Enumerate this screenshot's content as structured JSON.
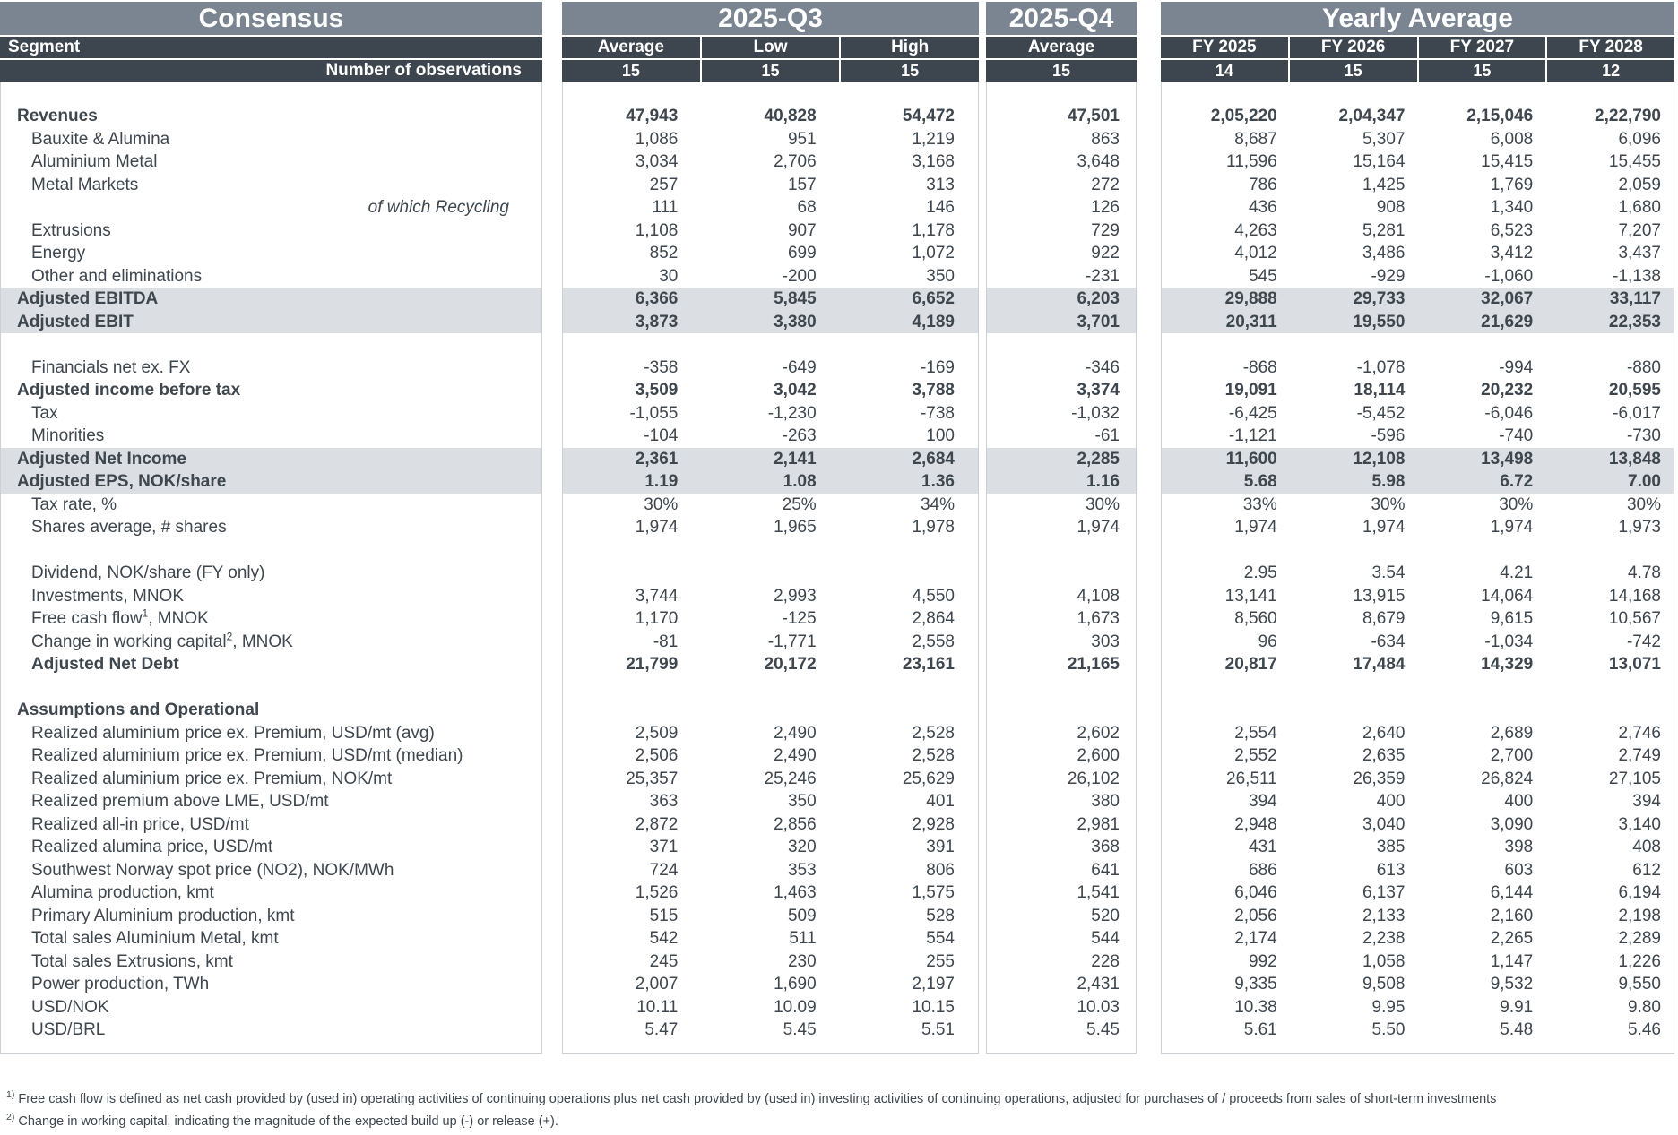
{
  "consensus": {
    "title": "Consensus",
    "segment_label": "Segment",
    "observations_label": "Number of observations"
  },
  "groups": {
    "q3": {
      "title": "2025-Q3",
      "columns": [
        "Average",
        "Low",
        "High"
      ],
      "observations": [
        "15",
        "15",
        "15"
      ]
    },
    "q4": {
      "title": "2025-Q4",
      "columns": [
        "Average"
      ],
      "observations": [
        "15"
      ]
    },
    "yearly": {
      "title": "Yearly Average",
      "columns": [
        "FY 2025",
        "FY 2026",
        "FY 2027",
        "FY 2028"
      ],
      "observations": [
        "14",
        "15",
        "15",
        "12"
      ]
    }
  },
  "colors": {
    "title_bar": "#7a8591",
    "header_bar": "#3d464e",
    "highlight_row": "#dbdee2",
    "body_text": "#3e464e"
  },
  "rows": [
    {
      "label": "Revenues",
      "style": "top b",
      "values": [
        "47,943",
        "40,828",
        "54,472",
        "47,501",
        "2,05,220",
        "2,04,347",
        "2,15,046",
        "2,22,790"
      ]
    },
    {
      "label": "Bauxite & Alumina",
      "values": [
        "1,086",
        "951",
        "1,219",
        "863",
        "8,687",
        "5,307",
        "6,008",
        "6,096"
      ]
    },
    {
      "label": "Aluminium Metal",
      "values": [
        "3,034",
        "2,706",
        "3,168",
        "3,648",
        "11,596",
        "15,164",
        "15,415",
        "15,455"
      ]
    },
    {
      "label": "Metal Markets",
      "values": [
        "257",
        "157",
        "313",
        "272",
        "786",
        "1,425",
        "1,769",
        "2,059"
      ]
    },
    {
      "label": "of which Recycling",
      "style": "ir",
      "values": [
        "111",
        "68",
        "146",
        "126",
        "436",
        "908",
        "1,340",
        "1,680"
      ]
    },
    {
      "label": "Extrusions",
      "values": [
        "1,108",
        "907",
        "1,178",
        "729",
        "4,263",
        "5,281",
        "6,523",
        "7,207"
      ]
    },
    {
      "label": "Energy",
      "values": [
        "852",
        "699",
        "1,072",
        "922",
        "4,012",
        "3,486",
        "3,412",
        "3,437"
      ]
    },
    {
      "label": "Other and eliminations",
      "values": [
        "30",
        "-200",
        "350",
        "-231",
        "545",
        "-929",
        "-1,060",
        "-1,138"
      ]
    },
    {
      "label": "Adjusted EBITDA",
      "style": "top b hl",
      "values": [
        "6,366",
        "5,845",
        "6,652",
        "6,203",
        "29,888",
        "29,733",
        "32,067",
        "33,117"
      ]
    },
    {
      "label": "Adjusted EBIT",
      "style": "top b hl",
      "values": [
        "3,873",
        "3,380",
        "4,189",
        "3,701",
        "20,311",
        "19,550",
        "21,629",
        "22,353"
      ]
    },
    {
      "blank": true
    },
    {
      "label": "Financials net ex. FX",
      "values": [
        "-358",
        "-649",
        "-169",
        "-346",
        "-868",
        "-1,078",
        "-994",
        "-880"
      ]
    },
    {
      "label": "Adjusted income before tax",
      "style": "top b",
      "values": [
        "3,509",
        "3,042",
        "3,788",
        "3,374",
        "19,091",
        "18,114",
        "20,232",
        "20,595"
      ]
    },
    {
      "label": "Tax",
      "values": [
        "-1,055",
        "-1,230",
        "-738",
        "-1,032",
        "-6,425",
        "-5,452",
        "-6,046",
        "-6,017"
      ]
    },
    {
      "label": "Minorities",
      "values": [
        "-104",
        "-263",
        "100",
        "-61",
        "-1,121",
        "-596",
        "-740",
        "-730"
      ]
    },
    {
      "label": "Adjusted Net Income",
      "style": "top b hl",
      "values": [
        "2,361",
        "2,141",
        "2,684",
        "2,285",
        "11,600",
        "12,108",
        "13,498",
        "13,848"
      ]
    },
    {
      "label": "Adjusted EPS, NOK/share",
      "style": "top b hl",
      "values": [
        "1.19",
        "1.08",
        "1.36",
        "1.16",
        "5.68",
        "5.98",
        "6.72",
        "7.00"
      ]
    },
    {
      "label": "Tax rate, %",
      "values": [
        "30%",
        "25%",
        "34%",
        "30%",
        "33%",
        "30%",
        "30%",
        "30%"
      ]
    },
    {
      "label": "Shares average, # shares",
      "values": [
        "1,974",
        "1,965",
        "1,978",
        "1,974",
        "1,974",
        "1,974",
        "1,974",
        "1,973"
      ]
    },
    {
      "blank": true
    },
    {
      "label": "Dividend, NOK/share (FY only)",
      "values": [
        "",
        "",
        "",
        "",
        "2.95",
        "3.54",
        "4.21",
        "4.78"
      ]
    },
    {
      "label": "Investments, MNOK",
      "values": [
        "3,744",
        "2,993",
        "4,550",
        "4,108",
        "13,141",
        "13,915",
        "14,064",
        "14,168"
      ]
    },
    {
      "label": "Free cash flow",
      "sup": "1",
      "suffix": ", MNOK",
      "values": [
        "1,170",
        "-125",
        "2,864",
        "1,673",
        "8,560",
        "8,679",
        "9,615",
        "10,567"
      ]
    },
    {
      "label": "Change in working capital",
      "sup": "2",
      "suffix": ", MNOK",
      "values": [
        "-81",
        "-1,771",
        "2,558",
        "303",
        "96",
        "-634",
        "-1,034",
        "-742"
      ]
    },
    {
      "label": "Adjusted Net Debt",
      "style": "b",
      "values": [
        "21,799",
        "20,172",
        "23,161",
        "21,165",
        "20,817",
        "17,484",
        "14,329",
        "13,071"
      ]
    },
    {
      "blank": true
    },
    {
      "label": "Assumptions and Operational",
      "style": "top b"
    },
    {
      "label": "Realized aluminium price ex. Premium, USD/mt (avg)",
      "values": [
        "2,509",
        "2,490",
        "2,528",
        "2,602",
        "2,554",
        "2,640",
        "2,689",
        "2,746"
      ]
    },
    {
      "label": "Realized aluminium price ex. Premium, USD/mt (median)",
      "values": [
        "2,506",
        "2,490",
        "2,528",
        "2,600",
        "2,552",
        "2,635",
        "2,700",
        "2,749"
      ]
    },
    {
      "label": "Realized aluminium price ex. Premium, NOK/mt",
      "values": [
        "25,357",
        "25,246",
        "25,629",
        "26,102",
        "26,511",
        "26,359",
        "26,824",
        "27,105"
      ]
    },
    {
      "label": "Realized premium above LME, USD/mt",
      "values": [
        "363",
        "350",
        "401",
        "380",
        "394",
        "400",
        "400",
        "394"
      ]
    },
    {
      "label": "Realized all-in price, USD/mt",
      "values": [
        "2,872",
        "2,856",
        "2,928",
        "2,981",
        "2,948",
        "3,040",
        "3,090",
        "3,140"
      ]
    },
    {
      "label": "Realized alumina price, USD/mt",
      "values": [
        "371",
        "320",
        "391",
        "368",
        "431",
        "385",
        "398",
        "408"
      ]
    },
    {
      "label": "Southwest Norway spot price (NO2), NOK/MWh",
      "values": [
        "724",
        "353",
        "806",
        "641",
        "686",
        "613",
        "603",
        "612"
      ]
    },
    {
      "label": "Alumina production, kmt",
      "values": [
        "1,526",
        "1,463",
        "1,575",
        "1,541",
        "6,046",
        "6,137",
        "6,144",
        "6,194"
      ]
    },
    {
      "label": "Primary Aluminium production, kmt",
      "values": [
        "515",
        "509",
        "528",
        "520",
        "2,056",
        "2,133",
        "2,160",
        "2,198"
      ]
    },
    {
      "label": "Total sales Aluminium Metal, kmt",
      "values": [
        "542",
        "511",
        "554",
        "544",
        "2,174",
        "2,238",
        "2,265",
        "2,289"
      ]
    },
    {
      "label": "Total sales Extrusions, kmt",
      "values": [
        "245",
        "230",
        "255",
        "228",
        "992",
        "1,058",
        "1,147",
        "1,226"
      ]
    },
    {
      "label": "Power production, TWh",
      "values": [
        "2,007",
        "1,690",
        "2,197",
        "2,431",
        "9,335",
        "9,508",
        "9,532",
        "9,550"
      ]
    },
    {
      "label": "USD/NOK",
      "values": [
        "10.11",
        "10.09",
        "10.15",
        "10.03",
        "10.38",
        "9.95",
        "9.91",
        "9.80"
      ]
    },
    {
      "label": "USD/BRL",
      "values": [
        "5.47",
        "5.45",
        "5.51",
        "5.45",
        "5.61",
        "5.50",
        "5.48",
        "5.46"
      ]
    }
  ],
  "footnotes": [
    {
      "sup": "1)",
      "text": "Free cash flow is defined as net cash provided by (used in) operating activities of continuing operations plus net cash provided by (used in) investing activities of continuing operations, adjusted for purchases of / proceeds from sales of short-term investments"
    },
    {
      "sup": "2)",
      "text": "Change in working capital, indicating the magnitude of the expected build up (-) or release (+)."
    }
  ]
}
